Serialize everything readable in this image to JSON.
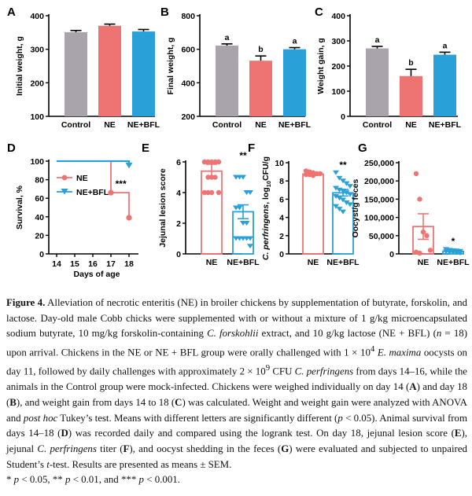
{
  "colors": {
    "control": "#a9a4ab",
    "ne": "#ee7474",
    "nebfl": "#29a1d8",
    "axis": "#000000"
  },
  "chart_data": [
    {
      "id": "A",
      "type": "bar",
      "label": "A",
      "categories": [
        "Control",
        "NE",
        "NE+BFL"
      ],
      "values": [
        351,
        370,
        353
      ],
      "errors": [
        5,
        5,
        6
      ],
      "ylabel": "Initial weight, g",
      "ylim": [
        100,
        400
      ],
      "yticks": [
        100,
        200,
        300,
        400
      ],
      "letters": [
        "",
        "",
        ""
      ]
    },
    {
      "id": "B",
      "type": "bar",
      "label": "B",
      "categories": [
        "Control",
        "NE",
        "NE+BFL"
      ],
      "values": [
        622,
        532,
        600
      ],
      "errors": [
        10,
        28,
        10
      ],
      "ylabel": "Final weight, g",
      "ylim": [
        200,
        800
      ],
      "yticks": [
        200,
        400,
        600,
        800
      ],
      "letters": [
        "a",
        "b",
        "a"
      ]
    },
    {
      "id": "C",
      "type": "bar",
      "label": "C",
      "categories": [
        "Control",
        "NE",
        "NE+BFL"
      ],
      "values": [
        270,
        160,
        245
      ],
      "errors": [
        8,
        27,
        10
      ],
      "ylabel": "Weight gain, g",
      "ylim": [
        0,
        400
      ],
      "yticks": [
        0,
        100,
        200,
        300,
        400
      ],
      "letters": [
        "a",
        "b",
        "a"
      ]
    },
    {
      "id": "D",
      "type": "line",
      "label": "D",
      "xlabel": "Days of age",
      "ylabel": "Survival, %",
      "xlim": [
        14,
        18
      ],
      "xticks": [
        14,
        15,
        16,
        17,
        18
      ],
      "ylim": [
        0,
        100
      ],
      "yticks": [
        0,
        20,
        40,
        60,
        80,
        100
      ],
      "series": [
        {
          "name": "NE",
          "x": [
            14,
            17,
            17,
            18,
            18
          ],
          "y": [
            100,
            100,
            66,
            66,
            39
          ],
          "markers": [
            [
              17,
              66
            ],
            [
              18,
              39
            ]
          ]
        },
        {
          "name": "NE+BFL",
          "x": [
            14,
            18,
            18
          ],
          "y": [
            100,
            100,
            95
          ],
          "markers": [
            [
              18,
              95
            ]
          ]
        }
      ],
      "annotation": "***"
    },
    {
      "id": "E",
      "type": "bar",
      "label": "E",
      "categories": [
        "NE",
        "NE+BFL"
      ],
      "values": [
        5.4,
        2.75
      ],
      "errors": [
        0.45,
        0.45
      ],
      "ylabel": "Jejunal lesion score",
      "ylim": [
        0,
        6
      ],
      "yticks": [
        0,
        2,
        4,
        6
      ],
      "points": [
        [
          6,
          6,
          6,
          6,
          6,
          6,
          5,
          5,
          5,
          4,
          4,
          4,
          4
        ],
        [
          5,
          5,
          5,
          4,
          4,
          3,
          3,
          2,
          2,
          1,
          1,
          1,
          1,
          1,
          0.5
        ]
      ],
      "annotation": "**"
    },
    {
      "id": "F",
      "type": "bar",
      "label": "F",
      "categories": [
        "NE",
        "NE+BFL"
      ],
      "values": [
        8.75,
        6.7
      ],
      "errors": [
        0.15,
        0.35
      ],
      "ylabel": "C. perfringens, log10CFU/g",
      "ylabel_italic": "C. perfringens",
      "ylabel_rest": ", log",
      "ylabel_sub": "10",
      "ylabel_end": "CFU/g",
      "ylim": [
        0,
        10
      ],
      "yticks": [
        0,
        2,
        4,
        6,
        8,
        10
      ],
      "points": [
        [
          9.1,
          9.0,
          8.9,
          8.8,
          8.8,
          8.7,
          8.7,
          8.6
        ],
        [
          8.9,
          8.3,
          8.0,
          7.7,
          7.4,
          7.2,
          7.0,
          6.9,
          6.7,
          6.5,
          6.3,
          6.1,
          5.9,
          5.6,
          5.4,
          5.2,
          4.9,
          4.6
        ]
      ],
      "annotation": "**"
    },
    {
      "id": "G",
      "type": "bar",
      "label": "G",
      "categories": [
        "NE",
        "NE+BFL"
      ],
      "values": [
        75000,
        7000
      ],
      "errors": [
        35000,
        2000
      ],
      "ylabel": "Oocyst/g feces",
      "ylim": [
        0,
        250000
      ],
      "yticks": [
        0,
        50000,
        100000,
        150000,
        200000,
        250000
      ],
      "ytick_labels": [
        "0",
        "50,000",
        "100,000",
        "150,000",
        "200,000",
        "250,000"
      ],
      "points": [
        [
          220000,
          150000,
          60000,
          50000,
          10000,
          5000,
          2000
        ],
        [
          12000,
          10000,
          9000,
          8000,
          7000,
          6000,
          5000,
          4000,
          3000,
          2000
        ]
      ],
      "annotation": "*"
    }
  ],
  "caption": {
    "title": "Figure 4.",
    "t1": " Alleviation of necrotic enteritis (NE) in broiler chickens by supplementation of butyrate, forskolin, and lactose. Day-old male Cobb chicks were supplemented with or without a mixture of 1 g/kg microencapsulated sodium butyrate, 10 mg/kg forskolin-containing ",
    "i1": "C. forskohlii",
    "t2": " extract, and 10 g/kg lactose (NE + BFL) (",
    "i2": "n",
    "t3": " = 18) upon arrival. Chickens in the NE or NE + BFL group were orally challenged with 1 × 10",
    "sup1": "4",
    "t4": " ",
    "i3": "E. maxima",
    "t5": " oocysts on day 11, followed by daily challenges with approximately 2 × 10",
    "sup2": "9",
    "t6": " CFU ",
    "i4": "C. perfringens",
    "t7": " from days 14–16, while the animals in the Control group were mock-infected. Chickens were weighed individually on day 14 (",
    "b1": "A",
    "t8": ") and day 18 (",
    "b2": "B",
    "t9": "), and weight gain from days 14 to 18 (",
    "b3": "C",
    "t10": ") was calculated. Weight and weight gain were analyzed with ANOVA and ",
    "i5": "post hoc",
    "t11": " Tukey’s test. Means with different letters are significantly different (",
    "i6": "p",
    "t12": " < 0.05). Animal survival from days 14–18 (",
    "b4": "D",
    "t13": ") was recorded daily and compared using the logrank test. On day 18, jejunal lesion score (",
    "b5": "E",
    "t14": "), jejunal ",
    "i7": "C. perfringens",
    "t15": " titer (",
    "b6": "F",
    "t16": "), and oocyst shedding in the feces (",
    "b7": "G",
    "t17": ") were evaluated and subjected to unpaired Student’s ",
    "i8": "t",
    "t18": "-test. Results are presented as means ± SEM. ",
    "t19": "* ",
    "i9": "p",
    "t20": " < 0.05, ** ",
    "i10": "p",
    "t21": " < 0.01, and *** ",
    "i11": "p",
    "t22": " < 0.001."
  }
}
